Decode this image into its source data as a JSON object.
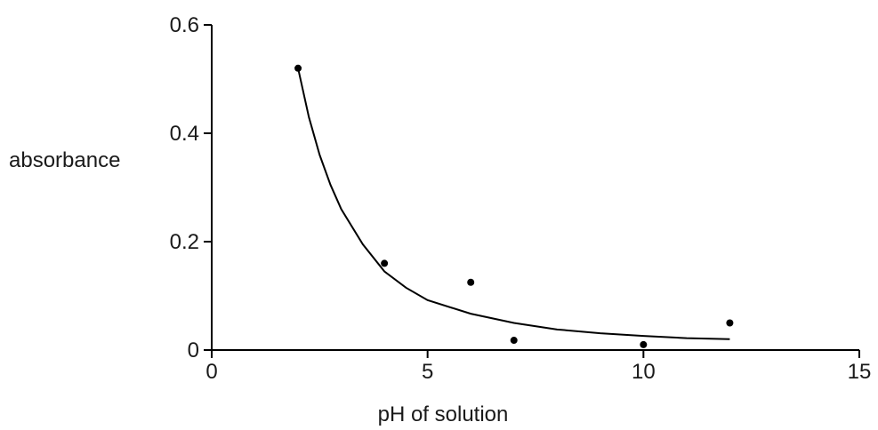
{
  "chart_data": {
    "type": "scatter",
    "title": "",
    "xlabel": "pH of solution",
    "ylabel": "absorbance",
    "xlim": [
      0,
      15
    ],
    "ylim": [
      0,
      0.6
    ],
    "x_ticks": [
      0,
      5,
      10,
      15
    ],
    "x_tick_labels": [
      "0",
      "5",
      "10",
      "15"
    ],
    "y_ticks": [
      0,
      0.2,
      0.4,
      0.6
    ],
    "y_tick_labels": [
      "0",
      "0.2",
      "0.4",
      "0.6"
    ],
    "grid": false,
    "points": [
      {
        "x": 2,
        "y": 0.52
      },
      {
        "x": 4,
        "y": 0.16
      },
      {
        "x": 6,
        "y": 0.125
      },
      {
        "x": 7,
        "y": 0.018
      },
      {
        "x": 10,
        "y": 0.01
      },
      {
        "x": 12,
        "y": 0.05
      }
    ],
    "curve": [
      {
        "x": 2,
        "y": 0.52
      },
      {
        "x": 2.25,
        "y": 0.43
      },
      {
        "x": 2.5,
        "y": 0.36
      },
      {
        "x": 2.75,
        "y": 0.305
      },
      {
        "x": 3,
        "y": 0.26
      },
      {
        "x": 3.5,
        "y": 0.195
      },
      {
        "x": 4,
        "y": 0.145
      },
      {
        "x": 4.5,
        "y": 0.115
      },
      {
        "x": 5,
        "y": 0.092
      },
      {
        "x": 6,
        "y": 0.067
      },
      {
        "x": 7,
        "y": 0.05
      },
      {
        "x": 8,
        "y": 0.038
      },
      {
        "x": 9,
        "y": 0.031
      },
      {
        "x": 10,
        "y": 0.026
      },
      {
        "x": 11,
        "y": 0.022
      },
      {
        "x": 12,
        "y": 0.02
      }
    ],
    "curve_color": "#000000",
    "point_color": "#000000"
  }
}
